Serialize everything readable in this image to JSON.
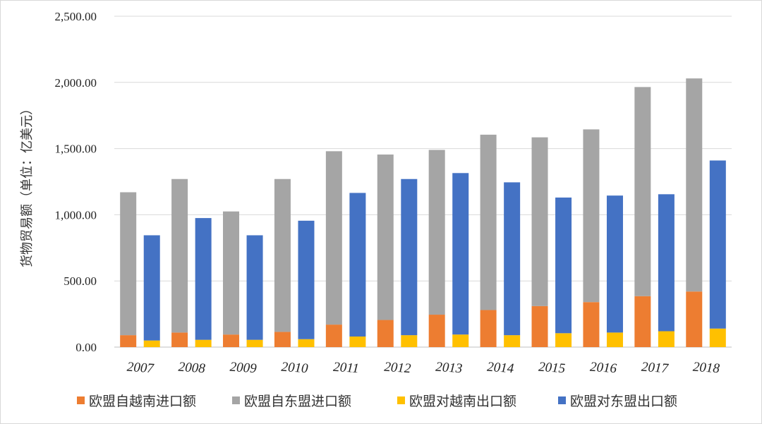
{
  "chart_data": {
    "type": "bar",
    "categories": [
      "2007",
      "2008",
      "2009",
      "2010",
      "2011",
      "2012",
      "2013",
      "2014",
      "2015",
      "2016",
      "2017",
      "2018"
    ],
    "series": [
      {
        "name": "欧盟自越南进口额",
        "color": "#ed7d31",
        "stack": "import",
        "values": [
          90,
          110,
          95,
          115,
          170,
          205,
          245,
          280,
          310,
          340,
          385,
          420
        ]
      },
      {
        "name": "欧盟自东盟进口额",
        "color": "#a5a5a5",
        "stack": "import",
        "values": [
          1080,
          1160,
          930,
          1155,
          1310,
          1250,
          1245,
          1325,
          1275,
          1305,
          1580,
          1610
        ]
      },
      {
        "name": "欧盟对越南出口额",
        "color": "#ffc000",
        "stack": "export",
        "values": [
          50,
          55,
          55,
          60,
          80,
          90,
          95,
          90,
          105,
          110,
          120,
          140
        ]
      },
      {
        "name": "欧盟对东盟出口额",
        "color": "#4472c4",
        "stack": "export",
        "values": [
          795,
          920,
          790,
          895,
          1085,
          1180,
          1220,
          1155,
          1025,
          1035,
          1035,
          1270
        ]
      }
    ],
    "ylabel": "货物贸易额（单位：亿美元）",
    "yticks": [
      "0.00",
      "500.00",
      "1,000.00",
      "1,500.00",
      "2,000.00",
      "2,500.00"
    ],
    "ylim": [
      0,
      2500
    ],
    "grid": true,
    "legend_position": "bottom"
  }
}
